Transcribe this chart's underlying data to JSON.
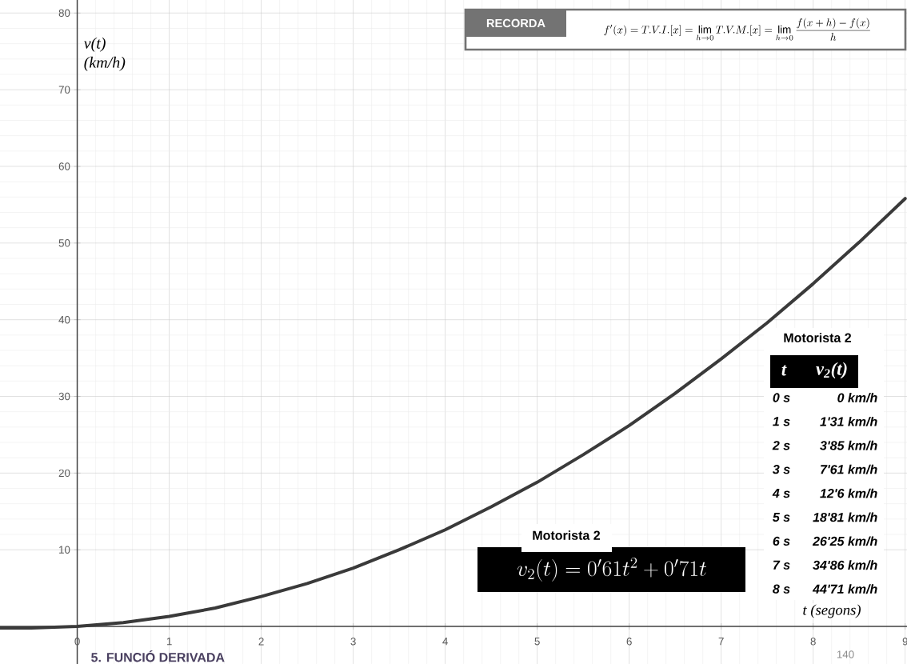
{
  "chart_data": {
    "type": "line",
    "xlabel": "t (segons)",
    "ylabel": "v(t) (km/h)",
    "x": [
      -0.84,
      -0.5,
      0,
      0.5,
      1,
      1.5,
      2,
      2.5,
      3,
      3.5,
      4,
      4.5,
      5,
      5.5,
      6,
      6.5,
      7,
      7.5,
      8,
      8.5,
      9
    ],
    "series": [
      {
        "color": "#3a3a3a",
        "values": [
          -0.2,
          -0.2,
          0,
          0.5,
          1.3,
          2.4,
          3.9,
          5.6,
          7.6,
          10,
          12.6,
          15.6,
          18.8,
          22.4,
          26.2,
          30.4,
          34.9,
          39.6,
          44.7,
          50.1,
          55.8
        ]
      }
    ],
    "xlim": [
      -0.84,
      9.02
    ],
    "ylim": [
      -4.9,
      81.7
    ],
    "xticks": [
      0,
      1,
      2,
      3,
      4,
      5,
      6,
      7,
      8,
      9
    ],
    "yticks": [
      10,
      20,
      30,
      40,
      50,
      60,
      70,
      80
    ],
    "grid": true,
    "marker": "none",
    "line_style": "solid",
    "annotations": [
      "RECORDA",
      "f'(x) = T.V.I.[x] = \\lim_{h\\to 0} T.V.M.[x] = \\lim_{h\\to 0}\\frac{f(x+h)-f(x)}{h}",
      "Motorista 2",
      "t",
      "v$_{2}$(t)",
      "0 s",
      "0 km/h",
      "1 s",
      "1'31 km/h",
      "2 s",
      "3'85 km/h",
      "3 s",
      "7'61 km/h",
      "4 s",
      "12'6 km/h",
      "5 s",
      "18'81 km/h",
      "6 s",
      "26'25 km/h",
      "7 s",
      "34'86 km/h",
      "8 s",
      "44'71 km/h",
      "Motorista 2",
      "v_2(t) = 0'61t^2 + 0'71t",
      "140",
      "5. FUNCIÓ DERIVADA"
    ]
  }
}
